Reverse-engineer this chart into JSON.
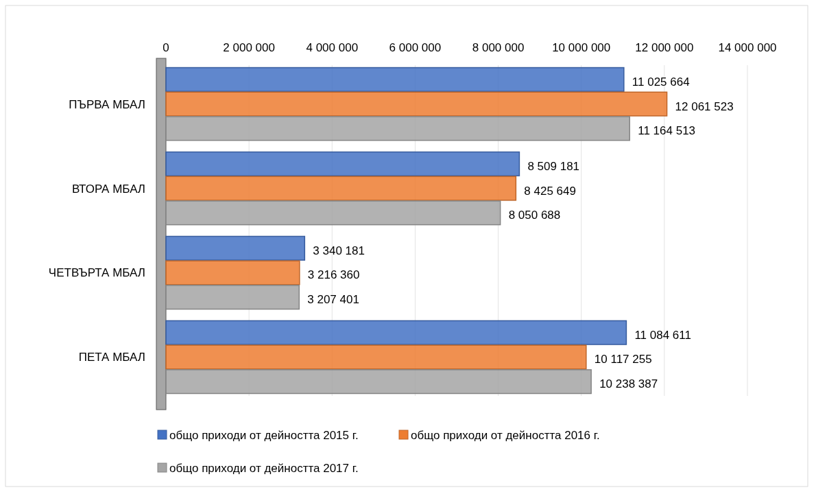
{
  "chart_data": {
    "type": "bar",
    "orientation": "horizontal",
    "categories": [
      "ПЪРВА МБАЛ",
      "ВТОРА МБАЛ",
      "ЧЕТВЪРТА МБАЛ",
      "ПЕТА МБАЛ"
    ],
    "series": [
      {
        "name": "общо приходи от дейността 2015 г.",
        "color": "#4472c4",
        "values": [
          11025664,
          8509181,
          3340181,
          11084611
        ],
        "value_labels": [
          "11 025 664",
          "8 509 181",
          "3 340 181",
          "11 084 611"
        ]
      },
      {
        "name": "общо приходи от дейността 2016 г.",
        "color": "#ed7d31",
        "values": [
          12061523,
          8425649,
          3216360,
          10117255
        ],
        "value_labels": [
          "12 061 523",
          "8 425 649",
          "3 216 360",
          "10 117 255"
        ]
      },
      {
        "name": "общо приходи от дейността 2017 г.",
        "color": "#a5a5a5",
        "values": [
          11164513,
          8050688,
          3207401,
          10238387
        ],
        "value_labels": [
          "11 164 513",
          "8 050 688",
          "3 207 401",
          "10 238 387"
        ]
      }
    ],
    "xlim": [
      0,
      14000000
    ],
    "xticks": [
      0,
      {
        "value": 2000000,
        "label": "2 000 000"
      },
      {
        "value": 4000000,
        "label": "4 000 000"
      },
      {
        "value": 6000000,
        "label": "6 000 000"
      },
      {
        "value": 8000000,
        "label": "8 000 000"
      },
      {
        "value": 10000000,
        "label": "10 000 000"
      },
      {
        "value": 12000000,
        "label": "12 000 000"
      },
      {
        "value": 14000000,
        "label": "14 000 000"
      }
    ],
    "grid": "x",
    "legend": "bottom"
  }
}
